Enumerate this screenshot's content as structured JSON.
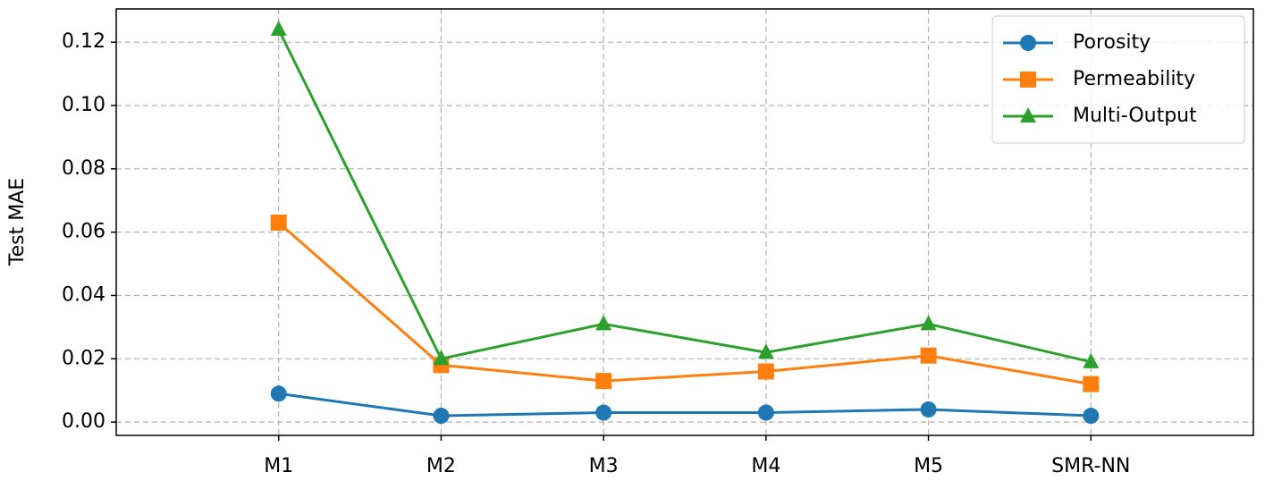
{
  "chart_data": {
    "type": "line",
    "y_label": "Test MAE",
    "categories": [
      "M1",
      "M2",
      "M3",
      "M4",
      "M5",
      "SMR-NN"
    ],
    "series": [
      {
        "name": "Porosity",
        "color": "#1f77b4",
        "marker": "circle",
        "values": [
          0.009,
          0.002,
          0.003,
          0.003,
          0.004,
          0.002
        ]
      },
      {
        "name": "Permeability",
        "color": "#ff7f0e",
        "marker": "square",
        "values": [
          0.063,
          0.018,
          0.013,
          0.016,
          0.021,
          0.012
        ]
      },
      {
        "name": "Multi-Output",
        "color": "#2ca02c",
        "marker": "triangle",
        "values": [
          0.124,
          0.02,
          0.031,
          0.022,
          0.031,
          0.019
        ]
      }
    ],
    "ylim": [
      -0.0042,
      0.1305
    ],
    "yticks": [
      {
        "value": 0,
        "label": "0.00"
      },
      0.02,
      0.04,
      0.06,
      0.08,
      {
        "value": 0.1,
        "label": "0.10"
      },
      0.12
    ],
    "grid": true,
    "legend": "upper right"
  }
}
